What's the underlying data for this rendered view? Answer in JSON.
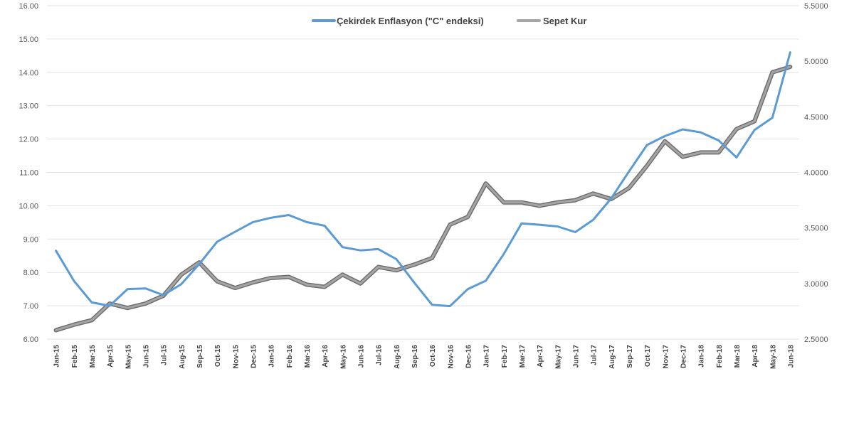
{
  "chart_data": {
    "type": "line",
    "title": "",
    "grid": true,
    "legend_position": "top-center",
    "x": [
      "Jan-15",
      "Feb-15",
      "Mar-15",
      "Apr-15",
      "May-15",
      "Jun-15",
      "Jul-15",
      "Aug-15",
      "Sep-15",
      "Oct-15",
      "Nov-15",
      "Dec-15",
      "Jan-16",
      "Feb-16",
      "Mar-16",
      "Apr-16",
      "May-16",
      "Jun-16",
      "Jul-16",
      "Aug-16",
      "Sep-16",
      "Oct-16",
      "Nov-16",
      "Dec-16",
      "Jan-17",
      "Feb-17",
      "Mar-17",
      "Apr-17",
      "May-17",
      "Jun-17",
      "Jul-17",
      "Aug-17",
      "Sep-17",
      "Oct-17",
      "Nov-17",
      "Dec-17",
      "Jan-18",
      "Feb-18",
      "Mar-18",
      "Apr-18",
      "May-18",
      "Jun-18"
    ],
    "y_left": {
      "ticks": [
        "6.00",
        "7.00",
        "8.00",
        "9.00",
        "10.00",
        "11.00",
        "12.00",
        "13.00",
        "14.00",
        "15.00",
        "16.00"
      ],
      "ylim": [
        6,
        16
      ]
    },
    "y_right": {
      "ticks": [
        "2.5000",
        "3.0000",
        "3.5000",
        "4.0000",
        "4.5000",
        "5.0000",
        "5.5000"
      ],
      "ylim": [
        2.5,
        5.5
      ]
    },
    "series": [
      {
        "name": "Çekirdek Enflasyon (\"C\" endeksi)",
        "axis": "left",
        "color": "#5b9bd5",
        "values": [
          8.65,
          7.75,
          7.1,
          7.0,
          7.5,
          7.52,
          7.32,
          7.65,
          8.25,
          8.92,
          9.22,
          9.51,
          9.64,
          9.72,
          9.51,
          9.4,
          8.76,
          8.66,
          8.7,
          8.4,
          7.7,
          7.03,
          6.99,
          7.5,
          7.75,
          8.55,
          9.47,
          9.43,
          9.38,
          9.21,
          9.58,
          10.22,
          11.03,
          11.82,
          12.09,
          12.29,
          12.2,
          11.96,
          11.45,
          12.27,
          12.64,
          14.6
        ]
      },
      {
        "name": "Sepet Kur",
        "axis": "right",
        "color": "#a5a5a5",
        "values": [
          2.58,
          2.63,
          2.67,
          2.82,
          2.78,
          2.82,
          2.89,
          3.08,
          3.19,
          3.02,
          2.96,
          3.01,
          3.05,
          3.06,
          2.99,
          2.97,
          3.08,
          3.0,
          3.15,
          3.12,
          3.17,
          3.23,
          3.53,
          3.6,
          3.9,
          3.73,
          3.73,
          3.7,
          3.73,
          3.75,
          3.81,
          3.76,
          3.86,
          4.06,
          4.28,
          4.14,
          4.18,
          4.18,
          4.39,
          4.46,
          4.9,
          4.95
        ]
      }
    ]
  }
}
